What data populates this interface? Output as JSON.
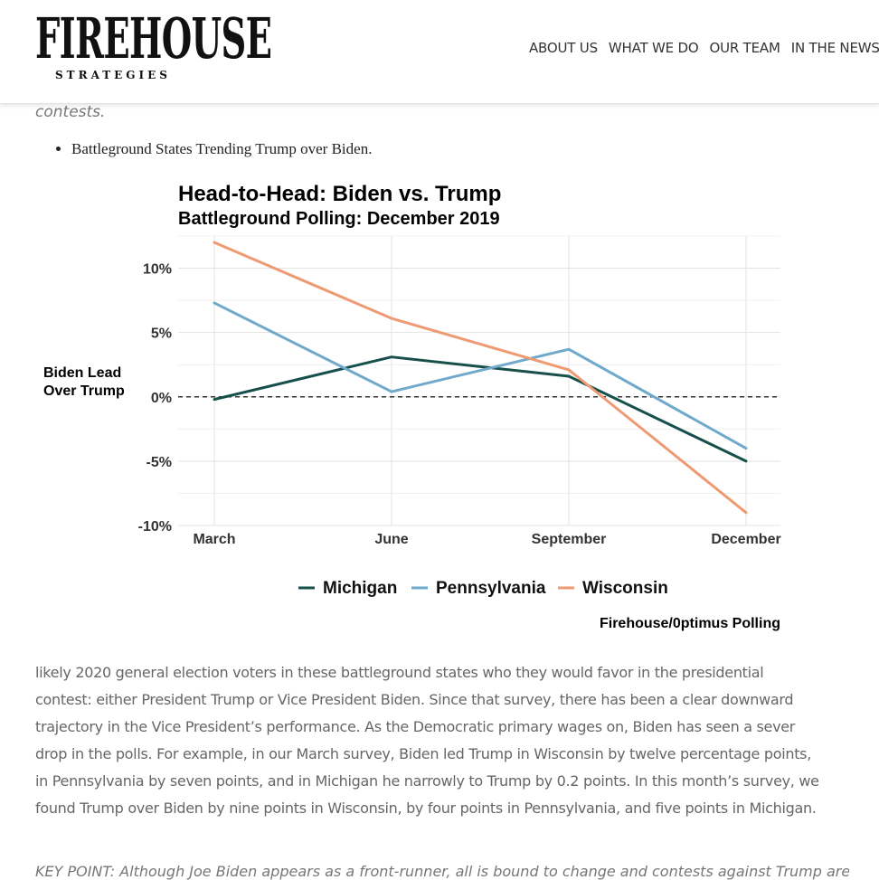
{
  "header": {
    "logo_main": "FIREHOUSE",
    "logo_sub": "STRATEGIES",
    "nav": [
      "ABOUT US",
      "WHAT WE DO",
      "OUR TEAM",
      "IN THE NEWS"
    ]
  },
  "article": {
    "prev_text": "contests.",
    "bullet": "Battleground States Trending Trump over Biden.",
    "body": "likely 2020 general election voters in these battleground states who they would favor in the presidential contest: either President Trump or Vice President Biden. Since that survey, there has been a clear downward trajectory in the Vice President’s performance.  As the Democratic primary wages on, Biden has seen a sever drop in the polls. For example, in our March survey, Biden led Trump in Wisconsin by twelve percentage points, in Pennsylvania by seven points, and in Michigan he narrowly to Trump by 0.2 points.  In this month’s survey, we found Trump over Biden by nine points in Wisconsin, by four points in Pennsylvania, and five points in Michigan.",
    "next_text": "KEY POINT: Although Joe Biden appears as a front-runner, all is bound to change and contests against Trump are tightening"
  },
  "chart_data": {
    "type": "line",
    "title": "Head-to-Head: Biden vs. Trump",
    "subtitle": "Battleground Polling: December 2019",
    "ylabel": "Biden Lead Over Trump",
    "xlabel": "",
    "categories": [
      "March",
      "June",
      "September",
      "December"
    ],
    "ylim": [
      -10,
      12.5
    ],
    "yticks": [
      -10,
      -5,
      0,
      5,
      10
    ],
    "ytick_labels": [
      "-10%",
      "-5%",
      "0%",
      "5%",
      "10%"
    ],
    "series": [
      {
        "name": "Michigan",
        "color": "#174f4a",
        "values": [
          -0.2,
          3.1,
          1.6,
          -5
        ]
      },
      {
        "name": "Pennsylvania",
        "color": "#6fa9cc",
        "values": [
          7.3,
          0.4,
          3.7,
          -4
        ]
      },
      {
        "name": "Wisconsin",
        "color": "#ee9a73",
        "values": [
          12,
          6.1,
          2.1,
          -9
        ]
      }
    ],
    "legend_position": "bottom",
    "source": "Firehouse/0ptimus Polling",
    "zero_line": "dashed"
  }
}
